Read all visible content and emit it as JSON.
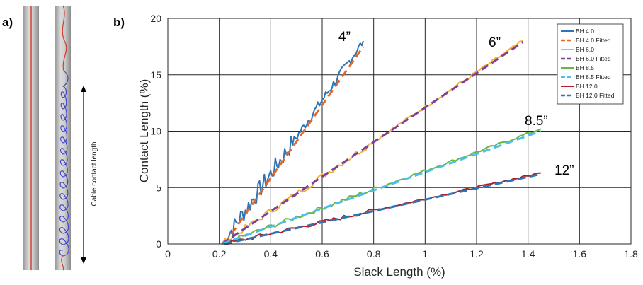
{
  "panel_a": {
    "label": "a)",
    "annotation": "Cable contact length"
  },
  "chart_data": {
    "type": "line",
    "panel_label": "b)",
    "xlabel": "Slack Length (%)",
    "ylabel": "Contact Length (%)",
    "xlim": [
      0,
      1.8
    ],
    "ylim": [
      0,
      20
    ],
    "xticks": [
      0,
      0.2,
      0.4,
      0.6,
      0.8,
      1,
      1.2,
      1.4,
      1.6,
      1.8
    ],
    "yticks": [
      0,
      5,
      10,
      15,
      20
    ],
    "grid": true,
    "legend_position": "top-right",
    "curve_labels": [
      "4”",
      "6”",
      "8.5”",
      "12”"
    ],
    "series": [
      {
        "name": "BH 4.0",
        "color": "#2e75b6",
        "dash": "solid",
        "noise": 0.7,
        "x": [
          0.21,
          0.76
        ],
        "y": [
          0,
          18.0
        ]
      },
      {
        "name": "BH 4.0 Fitted",
        "color": "#e3662c",
        "dash": "dashed",
        "noise": 0,
        "x": [
          0.22,
          0.76
        ],
        "y": [
          0,
          17.5
        ]
      },
      {
        "name": "BH 6.0",
        "color": "#f2b134",
        "dash": "solid",
        "noise": 0.25,
        "x": [
          0.21,
          1.38
        ],
        "y": [
          0,
          18.0
        ]
      },
      {
        "name": "BH 6.0 Fitted",
        "color": "#7e3f98",
        "dash": "dashed",
        "noise": 0,
        "x": [
          0.21,
          1.38
        ],
        "y": [
          0,
          17.9
        ]
      },
      {
        "name": "BH 8.5",
        "color": "#6ab544",
        "dash": "solid",
        "noise": 0.18,
        "x": [
          0.21,
          1.45
        ],
        "y": [
          0,
          10.2
        ]
      },
      {
        "name": "BH 8.5 Fitted",
        "color": "#4dbfe8",
        "dash": "dashed",
        "noise": 0,
        "x": [
          0.21,
          1.45
        ],
        "y": [
          0,
          10.0
        ]
      },
      {
        "name": "BH 12.0",
        "color": "#b01e23",
        "dash": "solid",
        "noise": 0.15,
        "x": [
          0.22,
          1.45
        ],
        "y": [
          0,
          6.3
        ]
      },
      {
        "name": "BH 12.0 Fitted",
        "color": "#2e75b6",
        "dash": "dashed",
        "noise": 0,
        "x": [
          0.22,
          1.45
        ],
        "y": [
          0,
          6.2
        ]
      }
    ]
  }
}
